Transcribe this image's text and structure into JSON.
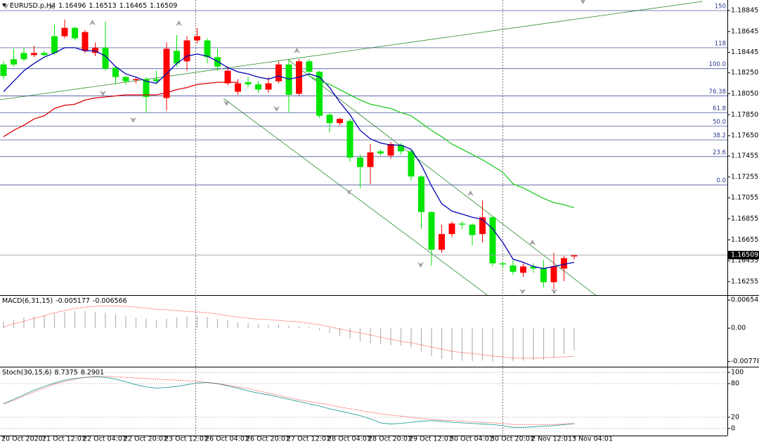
{
  "chart_data": {
    "type": "candlestick",
    "symbol": "EURUSD.p,H4",
    "categories": [
      "20 Oct 2020",
      null,
      null,
      null,
      "21 Oct 12:01",
      null,
      null,
      null,
      "22 Oct 04:01",
      null,
      null,
      null,
      "22 Oct 20:01",
      null,
      null,
      null,
      "23 Oct 12:01",
      null,
      null,
      null,
      "26 Oct 04:01",
      null,
      null,
      null,
      "26 Oct 20:01",
      null,
      null,
      null,
      "27 Oct 12:01",
      null,
      null,
      null,
      "28 Oct 04:01",
      null,
      null,
      null,
      "28 Oct 20:01",
      null,
      null,
      null,
      "29 Oct 12:01",
      null,
      null,
      null,
      "30 Oct 04:01",
      null,
      null,
      null,
      "30 Oct 20:01",
      null,
      null,
      null,
      "2 Nov 12:01",
      null,
      null,
      null,
      "3 Nov 04:01"
    ],
    "open": [
      1.1833,
      1.1838,
      1.1844,
      1.1842,
      1.1844,
      1.186,
      1.186,
      1.1868,
      1.1846,
      1.1844,
      1.1849,
      1.183,
      1.1821,
      1.1818,
      1.1819,
      1.1819,
      1.1801,
      1.1846,
      1.1836,
      1.1856,
      1.1856,
      1.184,
      1.1815,
      1.1807,
      1.1816,
      1.1814,
      1.1809,
      1.1817,
      1.1833,
      1.1805,
      1.1836,
      1.1826,
      1.1785,
      1.1777,
      1.1779,
      1.1744,
      1.1735,
      1.175,
      1.1746,
      1.1756,
      1.175,
      1.1726,
      1.1692,
      1.1656,
      1.1671,
      1.1681,
      1.168,
      1.1671,
      1.1687,
      1.1643,
      1.1641,
      1.1634,
      1.164,
      1.1638,
      1.1625,
      1.1638,
      1.16496
    ],
    "high": [
      1.1836,
      1.1848,
      1.1849,
      1.1851,
      1.1846,
      1.1871,
      1.1876,
      1.1869,
      1.1866,
      1.1854,
      1.1874,
      1.1831,
      1.1822,
      1.1821,
      1.1821,
      1.1827,
      1.1854,
      1.1861,
      1.186,
      1.1868,
      1.1858,
      1.1848,
      1.1831,
      1.1819,
      1.1821,
      1.1817,
      1.1821,
      1.1836,
      1.1838,
      1.1838,
      1.1838,
      1.1827,
      1.1787,
      1.1782,
      1.1781,
      1.1747,
      1.1757,
      1.1752,
      1.1759,
      1.1758,
      1.1752,
      1.1727,
      1.1693,
      1.168,
      1.1683,
      1.1683,
      1.1681,
      1.1703,
      1.1688,
      1.1645,
      1.1646,
      1.1643,
      1.1643,
      1.1646,
      1.1653,
      1.165,
      1.16513
    ],
    "low": [
      1.1819,
      1.1831,
      1.1836,
      1.184,
      1.1841,
      1.1842,
      1.1858,
      1.1856,
      1.1844,
      1.1841,
      1.1827,
      1.1814,
      1.1814,
      1.1815,
      1.1787,
      1.1814,
      1.1789,
      1.1831,
      1.1827,
      1.1853,
      1.1834,
      1.1827,
      1.1813,
      1.1804,
      1.1811,
      1.1806,
      1.1806,
      1.1815,
      1.1787,
      1.1803,
      1.1822,
      1.1782,
      1.1768,
      1.1775,
      1.174,
      1.1715,
      1.1719,
      1.1746,
      1.1743,
      1.1747,
      1.1722,
      1.1676,
      1.1641,
      1.1653,
      1.1668,
      1.1676,
      1.166,
      1.1663,
      1.164,
      1.1638,
      1.1632,
      1.163,
      1.1634,
      1.162,
      1.1618,
      1.1626,
      1.16465
    ],
    "close": [
      1.1822,
      1.1833,
      1.1838,
      1.1844,
      1.1842,
      1.1844,
      1.1868,
      1.1858,
      1.1864,
      1.1849,
      1.1829,
      1.1821,
      1.1817,
      1.1819,
      1.1802,
      1.1817,
      1.1848,
      1.1834,
      1.1856,
      1.186,
      1.184,
      1.1831,
      1.1827,
      1.1815,
      1.1814,
      1.1809,
      1.1815,
      1.1833,
      1.1804,
      1.1836,
      1.1826,
      1.1784,
      1.1777,
      1.1781,
      1.1744,
      1.1735,
      1.1749,
      1.1748,
      1.1757,
      1.175,
      1.1726,
      1.1692,
      1.1656,
      1.1671,
      1.1681,
      1.168,
      1.167,
      1.1687,
      1.1643,
      1.1642,
      1.1635,
      1.164,
      1.1638,
      1.1625,
      1.164,
      1.1648,
      1.16509
    ],
    "up_color": "#ff0000",
    "down_color": "#00e600",
    "ylim": [
      1.16127,
      1.18946
    ],
    "yticks": [
      1.18845,
      1.18645,
      1.18445,
      {
        "value": 1.1825,
        "label": "1.18250"
      },
      {
        "value": 1.1805,
        "label": "1.18050"
      },
      {
        "value": 1.1785,
        "label": "1.17850"
      },
      {
        "value": 1.1765,
        "label": "1.17650"
      },
      1.17455,
      1.17255,
      1.17055,
      1.16855,
      1.16655,
      1.16455,
      1.16255
    ],
    "moving_averages": [
      {
        "color": "#0000b4",
        "values": [
          1.1807,
          1.1817,
          1.1827,
          1.1834,
          1.184,
          1.1844,
          1.1849,
          1.1849,
          1.1846,
          1.1846,
          1.1841,
          1.1831,
          1.1824,
          1.1821,
          1.1817,
          1.1815,
          1.1824,
          1.1834,
          1.1841,
          1.1843,
          1.1841,
          1.1836,
          1.183,
          1.1826,
          1.1824,
          1.1821,
          1.1819,
          1.1822,
          1.1819,
          1.1821,
          1.1824,
          1.1821,
          1.1811,
          1.1797,
          1.1785,
          1.177,
          1.1762,
          1.1758,
          1.1756,
          1.1756,
          1.1752,
          1.1737,
          1.1717,
          1.17,
          1.1693,
          1.169,
          1.1687,
          1.1685,
          1.1676,
          1.1663,
          1.1647,
          1.1644,
          1.164,
          1.1638,
          1.164,
          1.1642,
          1.1644
        ]
      },
      {
        "color": "#e00000",
        "values": [
          1.1764,
          1.177,
          1.1775,
          1.1781,
          1.1784,
          1.1791,
          1.1794,
          1.1795,
          1.1799,
          1.1801,
          1.1802,
          1.1803,
          1.1804,
          1.1804,
          1.1804,
          1.1804,
          1.1806,
          1.1809,
          1.1811,
          1.1814,
          1.1815,
          1.1816,
          1.1816,
          1.1816,
          null,
          null,
          null,
          null,
          null,
          null,
          null,
          null,
          null,
          null,
          null,
          null,
          null,
          null,
          null,
          null,
          null,
          null,
          null,
          null,
          null,
          null,
          null,
          null,
          null,
          null,
          null,
          null,
          null,
          null,
          null,
          null,
          null
        ]
      },
      {
        "color": "#22cc22",
        "values": [
          null,
          null,
          null,
          null,
          null,
          null,
          null,
          null,
          null,
          null,
          null,
          null,
          null,
          null,
          null,
          null,
          null,
          null,
          null,
          null,
          null,
          null,
          null,
          null,
          null,
          null,
          null,
          null,
          null,
          null,
          1.1822,
          1.1817,
          1.1814,
          1.1809,
          1.1804,
          1.1799,
          1.1795,
          1.1793,
          1.1791,
          1.1787,
          1.1784,
          1.1777,
          1.177,
          1.1764,
          1.1757,
          1.1752,
          1.1747,
          1.1742,
          1.1736,
          1.173,
          1.1719,
          1.1715,
          1.171,
          1.1705,
          1.1701,
          1.1699,
          1.1696
        ]
      }
    ],
    "fib_levels": [
      {
        "label": "150",
        "price": 1.18845
      },
      {
        "label": "118",
        "price": 1.1849
      },
      {
        "label": "100.0",
        "price": 1.1829
      },
      {
        "label": "76.38",
        "price": 1.1803
      },
      {
        "label": "61.8",
        "price": 1.1787
      },
      {
        "label": "50.0",
        "price": 1.1774
      },
      {
        "label": "38.2",
        "price": 1.1761
      },
      {
        "label": "23.6",
        "price": 1.1745
      },
      {
        "label": "0.0",
        "price": 1.1718
      }
    ],
    "fib_color": "#2b3990",
    "macd": {
      "name": "MACD(6,31,15)",
      "color": "#b4b4b4",
      "signal_color": "#ff0000",
      "values": [
        0.0015,
        0.002,
        0.0025,
        0.0028,
        0.003,
        0.0035,
        0.0038,
        0.004,
        0.004,
        0.0038,
        0.0036,
        0.0032,
        0.0028,
        0.0025,
        0.0022,
        0.002,
        0.0022,
        0.0025,
        0.0027,
        0.0028,
        0.0026,
        0.0022,
        0.0018,
        0.0014,
        0.0012,
        0.001,
        0.0008,
        0.0008,
        0.0006,
        0.0004,
        0.0003,
        -0.0005,
        -0.0012,
        -0.0018,
        -0.0025,
        -0.0032,
        -0.0036,
        -0.0038,
        -0.004,
        -0.0041,
        -0.0045,
        -0.0055,
        -0.0065,
        -0.0072,
        -0.0075,
        -0.0076,
        -0.0077,
        -0.0076,
        -0.0078,
        -0.0079,
        -0.0077,
        -0.0076,
        -0.0075,
        -0.0075,
        -0.0068,
        -0.006,
        -0.005177
      ],
      "signal": [
        0.0003,
        0.001,
        0.0016,
        0.0023,
        0.0029,
        0.0036,
        0.0041,
        0.0046,
        0.0049,
        0.0051,
        0.0052,
        0.0052,
        0.0051,
        0.0049,
        0.0047,
        0.0044,
        0.0043,
        0.0041,
        0.0039,
        0.0038,
        0.0036,
        0.0033,
        0.0029,
        0.0026,
        0.0023,
        0.0021,
        0.002,
        0.0018,
        0.0016,
        0.0015,
        0.0011,
        0.0008,
        0.0003,
        -0.0002,
        -0.0007,
        -0.0011,
        -0.0016,
        -0.0021,
        -0.0026,
        -0.0031,
        -0.0034,
        -0.0039,
        -0.0044,
        -0.0049,
        -0.0054,
        -0.0057,
        -0.0059,
        -0.0062,
        -0.0065,
        -0.0067,
        -0.007,
        -0.007,
        -0.007,
        -0.0069,
        -0.0068,
        -0.0067,
        -0.006566
      ],
      "ylim": [
        -0.009,
        0.0074
      ],
      "yticks": [
        0.006543,
        {
          "value": 0,
          "label": "0.00"
        },
        -0.007785
      ]
    },
    "stochastic": {
      "name": "Stoch(30,15,6)",
      "main_color": "#2aa198",
      "signal_color": "#ff0000",
      "main": [
        44,
        52,
        60,
        68,
        75,
        81,
        86,
        89,
        91,
        92,
        91,
        88,
        83,
        78,
        74,
        72,
        73,
        75,
        78,
        81,
        82,
        80,
        76,
        72,
        67,
        63,
        60,
        56,
        52,
        48,
        44,
        40,
        35,
        31,
        27,
        23,
        17,
        10,
        8,
        9,
        11,
        13,
        14,
        13,
        11,
        10,
        9,
        8,
        7,
        5,
        2,
        2,
        3,
        4,
        5,
        7,
        8.7375
      ],
      "signal": [
        44,
        50,
        58,
        65,
        72,
        79,
        84,
        88,
        91,
        93,
        93,
        92,
        91,
        90,
        89,
        88,
        87,
        86,
        85,
        84,
        82,
        80,
        77,
        74,
        71,
        67,
        63,
        59,
        55,
        51,
        48,
        45,
        42,
        38,
        35,
        32,
        29,
        26,
        24,
        22,
        20,
        18,
        16,
        15,
        14,
        13,
        12,
        11,
        10,
        9,
        7,
        7,
        7,
        7,
        7,
        8,
        8.2901
      ],
      "ylim": [
        -12.7,
        107.6
      ],
      "yticks": [
        100,
        80,
        20,
        0
      ]
    }
  }
}
